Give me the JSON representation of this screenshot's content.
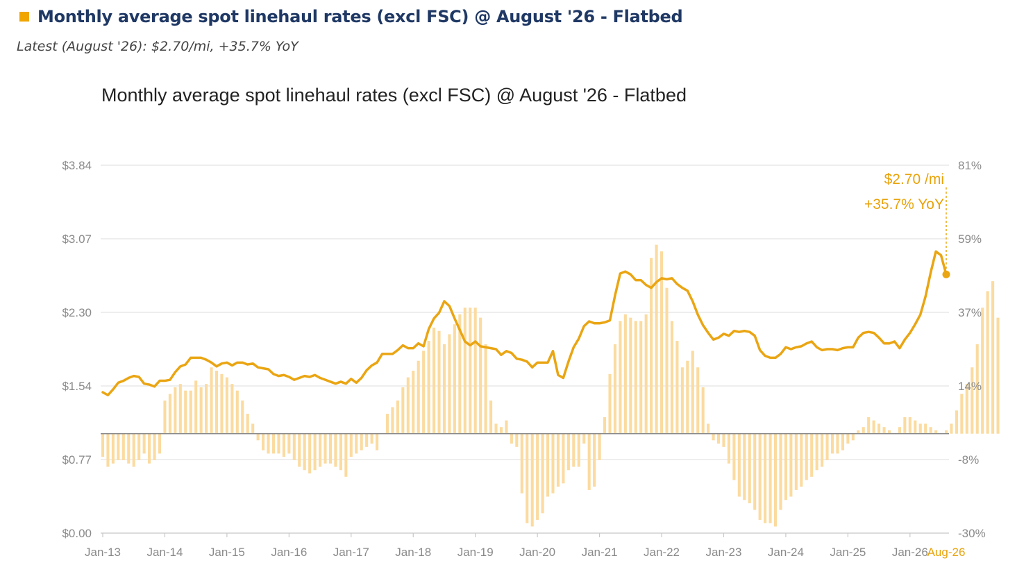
{
  "header": {
    "title": "Monthly average spot linehaul rates (excl FSC) @ August '26 - Flatbed",
    "subtitle": "Latest (August '26): $2.70/mi, +35.7% YoY",
    "marker_color": "#f0a500"
  },
  "chart_data": {
    "type": "line",
    "title": "Monthly average spot linehaul rates (excl FSC) @ August '26 - Flatbed",
    "xlabel": "",
    "ylabel": "",
    "x_tick_labels": [
      "Jan-13",
      "Jan-14",
      "Jan-15",
      "Jan-16",
      "Jan-17",
      "Jan-18",
      "Jan-19",
      "Jan-20",
      "Jan-21",
      "Jan-22",
      "Jan-23",
      "Jan-24",
      "Jan-25",
      "Jan-26",
      "Aug-26"
    ],
    "y_left": {
      "ticks": [
        "$0.00",
        "$0.77",
        "$1.54",
        "$2.30",
        "$3.07",
        "$3.84"
      ],
      "ylim": [
        0,
        3.84
      ]
    },
    "y_right": {
      "ticks": [
        "-30%",
        "-8%",
        "14%",
        "37%",
        "59%",
        "81%"
      ],
      "ylim": [
        -30,
        81
      ]
    },
    "grid": true,
    "legend": "none",
    "annotation": {
      "line1": "$2.70 /mi",
      "line2": "+35.7% YoY"
    },
    "line_color": "#eaa512",
    "bar_color": "#fbdba0",
    "start": "Jan-13",
    "end": "Aug-26",
    "rate_series": [
      1.47,
      1.44,
      1.5,
      1.57,
      1.59,
      1.62,
      1.64,
      1.63,
      1.56,
      1.55,
      1.53,
      1.59,
      1.59,
      1.6,
      1.68,
      1.74,
      1.76,
      1.83,
      1.83,
      1.83,
      1.81,
      1.78,
      1.74,
      1.77,
      1.78,
      1.75,
      1.78,
      1.78,
      1.76,
      1.77,
      1.73,
      1.72,
      1.71,
      1.66,
      1.64,
      1.65,
      1.63,
      1.6,
      1.62,
      1.64,
      1.63,
      1.65,
      1.62,
      1.6,
      1.58,
      1.56,
      1.58,
      1.56,
      1.61,
      1.57,
      1.62,
      1.7,
      1.75,
      1.78,
      1.87,
      1.87,
      1.87,
      1.91,
      1.96,
      1.93,
      1.93,
      1.98,
      1.95,
      2.13,
      2.24,
      2.3,
      2.42,
      2.37,
      2.24,
      2.12,
      2.0,
      1.96,
      2.0,
      1.95,
      1.94,
      1.93,
      1.92,
      1.86,
      1.9,
      1.88,
      1.82,
      1.81,
      1.79,
      1.73,
      1.78,
      1.78,
      1.78,
      1.9,
      1.65,
      1.62,
      1.79,
      1.94,
      2.03,
      2.16,
      2.21,
      2.19,
      2.19,
      2.2,
      2.22,
      2.48,
      2.71,
      2.73,
      2.7,
      2.64,
      2.64,
      2.59,
      2.56,
      2.62,
      2.66,
      2.65,
      2.66,
      2.6,
      2.56,
      2.53,
      2.42,
      2.28,
      2.17,
      2.09,
      2.02,
      2.04,
      2.08,
      2.06,
      2.11,
      2.1,
      2.11,
      2.1,
      2.06,
      1.91,
      1.85,
      1.83,
      1.83,
      1.87,
      1.94,
      1.92,
      1.94,
      1.95,
      1.98,
      2.0,
      1.94,
      1.91,
      1.92,
      1.92,
      1.91,
      1.93,
      1.94,
      1.94,
      2.04,
      2.09,
      2.1,
      2.09,
      2.04,
      1.98,
      1.98,
      2.0,
      1.93,
      2.02,
      2.09,
      2.18,
      2.28,
      2.47,
      2.72,
      2.94,
      2.9,
      2.7
    ],
    "yoy_series": [
      -7,
      -10,
      -9,
      -8,
      -8,
      -9,
      -10,
      -8,
      -6,
      -9,
      -8,
      -6,
      10,
      12,
      14,
      15,
      13,
      13,
      16,
      14,
      15,
      20,
      19,
      18,
      17,
      15,
      13,
      10,
      6,
      3,
      -2,
      -5,
      -6,
      -6,
      -6,
      -7,
      -6,
      -8,
      -10,
      -11,
      -12,
      -11,
      -10,
      -9,
      -9,
      -10,
      -11,
      -13,
      -7,
      -6,
      -5,
      -4,
      -3,
      -5,
      0,
      6,
      8,
      10,
      14,
      17,
      19,
      22,
      25,
      28,
      32,
      31,
      27,
      30,
      33,
      36,
      38,
      38,
      38,
      35,
      27,
      10,
      3,
      2,
      4,
      -3,
      -4,
      -18,
      -27,
      -28,
      -26,
      -24,
      -19,
      -18,
      -16,
      -15,
      -11,
      -10,
      -10,
      -3,
      -17,
      -16,
      -8,
      5,
      18,
      27,
      34,
      36,
      35,
      34,
      34,
      36,
      53,
      57,
      55,
      44,
      34,
      28,
      20,
      22,
      25,
      20,
      14,
      3,
      -2,
      -3,
      -4,
      -9,
      -14,
      -19,
      -20,
      -21,
      -23,
      -26,
      -27,
      -27,
      -28,
      -23,
      -20,
      -19,
      -17,
      -16,
      -14,
      -13,
      -11,
      -10,
      -8,
      -6,
      -6,
      -5,
      -3,
      -2,
      1,
      2,
      5,
      4,
      3,
      2,
      1,
      0,
      2,
      5,
      5,
      4,
      3,
      3,
      2,
      1,
      0,
      1,
      3,
      7,
      12,
      15,
      20,
      27,
      38,
      43,
      46,
      35
    ]
  }
}
